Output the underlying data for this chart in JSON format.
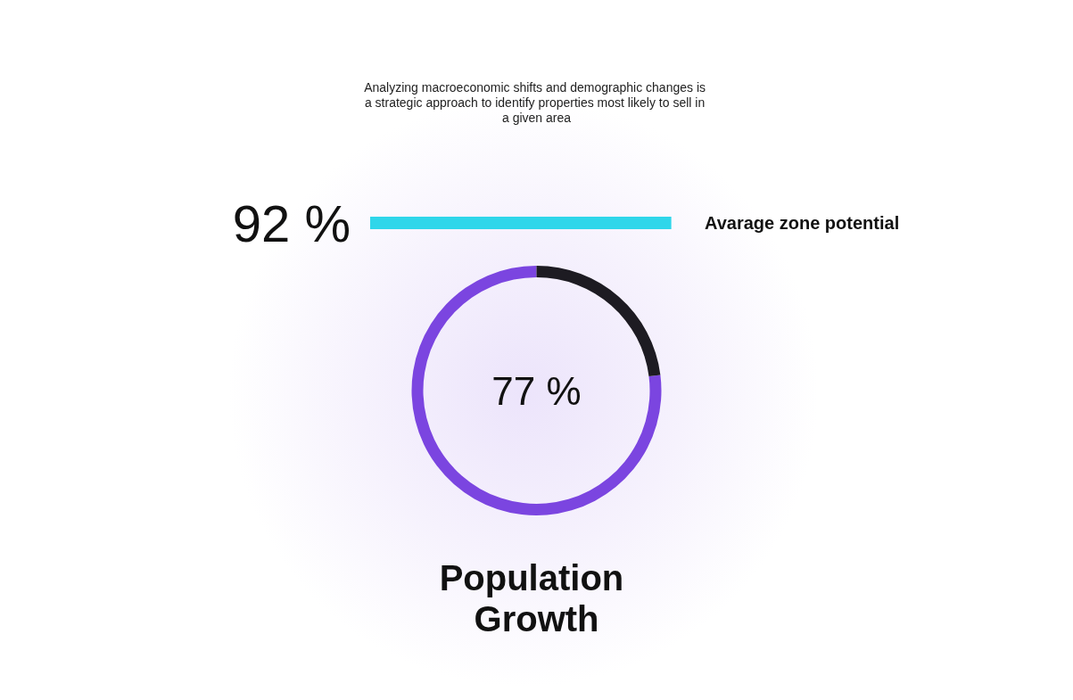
{
  "chart_data": [
    {
      "type": "bar",
      "orientation": "horizontal",
      "title": "Analyzing macroeconomic shifts and demographic changes is a strategic approach to identify properties most likely to sell in a given area",
      "categories": [
        "Avarage zone potential"
      ],
      "values": [
        92
      ],
      "value_labels": [
        "92 %"
      ],
      "color": "#2fd6ea",
      "tick_labels": "y",
      "grid": false
    },
    {
      "type": "donut",
      "title": "Population Growth",
      "categories": [
        null,
        null
      ],
      "values": [
        77,
        23
      ],
      "colors": [
        "#7b45e0",
        "#1d1b22"
      ],
      "value_labels": [
        "77 %",
        null
      ]
    }
  ]
}
